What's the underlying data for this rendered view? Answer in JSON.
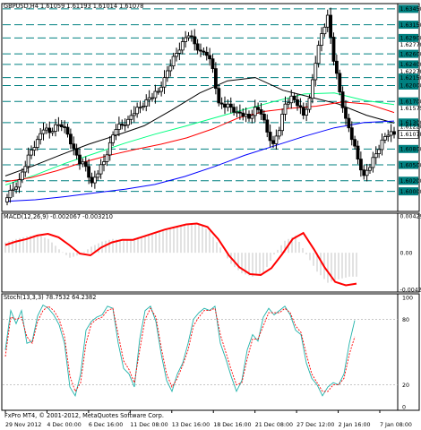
{
  "chart_data": [
    {
      "type": "candlestick",
      "title": "GBPUSD,H4  1.61059 1.61193 1.61014 1.61078",
      "symbol": "GBPUSD",
      "timeframe": "H4",
      "ohlc_last": {
        "open": 1.61059,
        "high": 1.61193,
        "low": 1.61014,
        "close": 1.61078
      },
      "last_price_label": "1.61078",
      "ylim": [
        1.5962,
        1.6355
      ],
      "x_labels": [
        "29 Nov 2012",
        "4 Dec 00:00",
        "6 Dec 16:00",
        "11 Dec 08:00",
        "13 Dec 16:00",
        "18 Dec 16:00",
        "21 Dec 08:00",
        "27 Dec 12:00",
        "2 Jan 16:00",
        "7 Jan 08:00"
      ],
      "y_tick_labels": [
        "1.63450",
        "1.63150",
        "1.62900",
        "1.62600",
        "1.62400",
        "1.62150",
        "1.62000",
        "1.61700",
        "1.61300",
        "1.61078",
        "1.60800",
        "1.60500",
        "1.60200",
        "1.60000"
      ],
      "y_tick_values": [
        1.6345,
        1.6315,
        1.629,
        1.626,
        1.624,
        1.6215,
        1.62,
        1.617,
        1.613,
        1.61078,
        1.608,
        1.605,
        1.602,
        1.6
      ],
      "level_lines": [
        1.6345,
        1.6315,
        1.629,
        1.626,
        1.624,
        1.6215,
        1.62,
        1.617,
        1.613,
        1.608,
        1.605,
        1.602,
        1.6
      ],
      "y_axis_plain_labels": [
        "1.62770",
        "1.62270",
        "1.61575",
        "1.61220"
      ],
      "y_axis_plain_values": [
        1.6277,
        1.6227,
        1.61575,
        1.6122
      ],
      "close_path": [
        1.5988,
        1.6004,
        1.6022,
        1.6047,
        1.6078,
        1.6098,
        1.6116,
        1.6111,
        1.6126,
        1.6122,
        1.6108,
        1.6081,
        1.6052,
        1.6047,
        1.6016,
        1.6033,
        1.6056,
        1.6092,
        1.6117,
        1.6125,
        1.6136,
        1.6147,
        1.6159,
        1.6173,
        1.6177,
        1.6189,
        1.6215,
        1.6237,
        1.6261,
        1.6283,
        1.6294,
        1.6279,
        1.6265,
        1.6257,
        1.6232,
        1.6167,
        1.6159,
        1.6159,
        1.615,
        1.6142,
        1.6138,
        1.6159,
        1.6146,
        1.6112,
        1.609,
        1.6115,
        1.6165,
        1.618,
        1.6162,
        1.6144,
        1.6176,
        1.6242,
        1.6298,
        1.6333,
        1.6246,
        1.6188,
        1.6138,
        1.6098,
        1.6061,
        1.603,
        1.6045,
        1.6071,
        1.6097,
        1.6106,
        1.6108
      ],
      "series": [
        {
          "name": "",
          "color": "#00ff80",
          "values": [
            1.6012,
            1.6031,
            1.6053,
            1.6072,
            1.6091,
            1.6108,
            1.6123,
            1.6139,
            1.6155,
            1.617,
            1.6184,
            1.6186,
            1.6172,
            1.6164
          ]
        },
        {
          "name": "",
          "color": "#000000",
          "values": [
            1.6029,
            1.6048,
            1.6069,
            1.6089,
            1.6106,
            1.6124,
            1.6154,
            1.6186,
            1.6209,
            1.6215,
            1.6191,
            1.6178,
            1.6165,
            1.6144,
            1.6129
          ]
        },
        {
          "name": "",
          "color": "#ff0000",
          "values": [
            1.6018,
            1.6026,
            1.6039,
            1.6055,
            1.6068,
            1.6079,
            1.6089,
            1.6101,
            1.6118,
            1.6139,
            1.6151,
            1.6157,
            1.6161,
            1.6169,
            1.6165,
            1.6149
          ]
        },
        {
          "name": "",
          "color": "#0000ff",
          "values": [
            1.5981,
            1.5984,
            1.599,
            1.5997,
            1.6004,
            1.6013,
            1.6028,
            1.6047,
            1.6068,
            1.6086,
            1.6104,
            1.612,
            1.613,
            1.6133
          ]
        }
      ]
    },
    {
      "type": "bar",
      "title": "MACD(12,26,9) -0.002067 -0.003210",
      "ylim": [
        -0.00427,
        0.00429
      ],
      "y_tick_labels": [
        "0.00429",
        "0.00",
        "-0.00427"
      ],
      "y_tick_values": [
        0.00429,
        0.0,
        -0.00427
      ],
      "histogram": [
        0.0012,
        0.0016,
        0.0019,
        0.0021,
        0.0016,
        0.0004,
        -0.0006,
        -0.0002,
        0.0007,
        0.0013,
        0.0016,
        0.0014,
        0.0017,
        0.002,
        0.0024,
        0.0028,
        0.003,
        0.0033,
        0.0034,
        0.0025,
        0.0006,
        -0.0013,
        -0.0024,
        -0.0028,
        -0.0024,
        -0.0002,
        0.0014,
        0.002,
        -0.0002,
        -0.0022,
        -0.0035,
        -0.0031,
        -0.0028
      ],
      "series": [
        {
          "name": "",
          "color": "#ff0000",
          "values": [
            0.0009,
            0.0013,
            0.0016,
            0.002,
            0.0022,
            0.0018,
            0.0009,
            -0.0001,
            -0.0003,
            0.0006,
            0.0012,
            0.0015,
            0.0015,
            0.0019,
            0.0023,
            0.0027,
            0.003,
            0.0033,
            0.0034,
            0.003,
            0.0016,
            -0.0003,
            -0.0017,
            -0.0025,
            -0.0026,
            -0.0018,
            -0.0002,
            0.0016,
            0.0023,
            0.0004,
            -0.0017,
            -0.0034,
            -0.0038,
            -0.0036
          ]
        }
      ]
    },
    {
      "type": "line",
      "title": "Stoch(13,3,3) 78.7532 64.2382",
      "ylim": [
        0,
        100
      ],
      "y_tick_labels": [
        "100",
        "80",
        "20",
        "0"
      ],
      "y_tick_values": [
        100,
        80,
        20,
        0
      ],
      "series": [
        {
          "name": "",
          "color": "#20b2aa",
          "values": [
            52,
            88,
            76,
            88,
            58,
            60,
            83,
            93,
            90,
            84,
            75,
            58,
            18,
            10,
            30,
            70,
            78,
            82,
            84,
            92,
            90,
            58,
            35,
            30,
            18,
            62,
            88,
            92,
            78,
            48,
            24,
            14,
            30,
            40,
            58,
            80,
            86,
            90,
            88,
            92,
            58,
            44,
            28,
            14,
            24,
            52,
            66,
            60,
            82,
            90,
            84,
            88,
            92,
            84,
            70,
            66,
            40,
            26,
            20,
            10,
            18,
            22,
            20,
            30,
            58,
            79
          ]
        },
        {
          "name": "",
          "color": "#ff0000",
          "values": [
            46,
            82,
            80,
            82,
            64,
            58,
            78,
            88,
            92,
            88,
            80,
            64,
            28,
            14,
            22,
            58,
            76,
            80,
            82,
            88,
            90,
            66,
            42,
            34,
            22,
            52,
            80,
            90,
            82,
            54,
            30,
            18,
            26,
            38,
            52,
            74,
            82,
            88,
            88,
            90,
            66,
            50,
            34,
            20,
            22,
            44,
            62,
            62,
            74,
            86,
            86,
            86,
            90,
            86,
            74,
            68,
            48,
            30,
            22,
            14,
            14,
            20,
            20,
            26,
            48,
            64
          ]
        }
      ]
    }
  ],
  "footer": {
    "copyright": "FxPro MT4, © 2001-2012, MetaQuotes Software Corp."
  },
  "colors": {
    "background": "#ffffff",
    "frame": "#000000",
    "level_lines": "#008080",
    "grid": "#b4b4b4",
    "bull_candle": "#ffffff",
    "bear_candle": "#000000",
    "macd_hist": "#c0c0c0"
  }
}
